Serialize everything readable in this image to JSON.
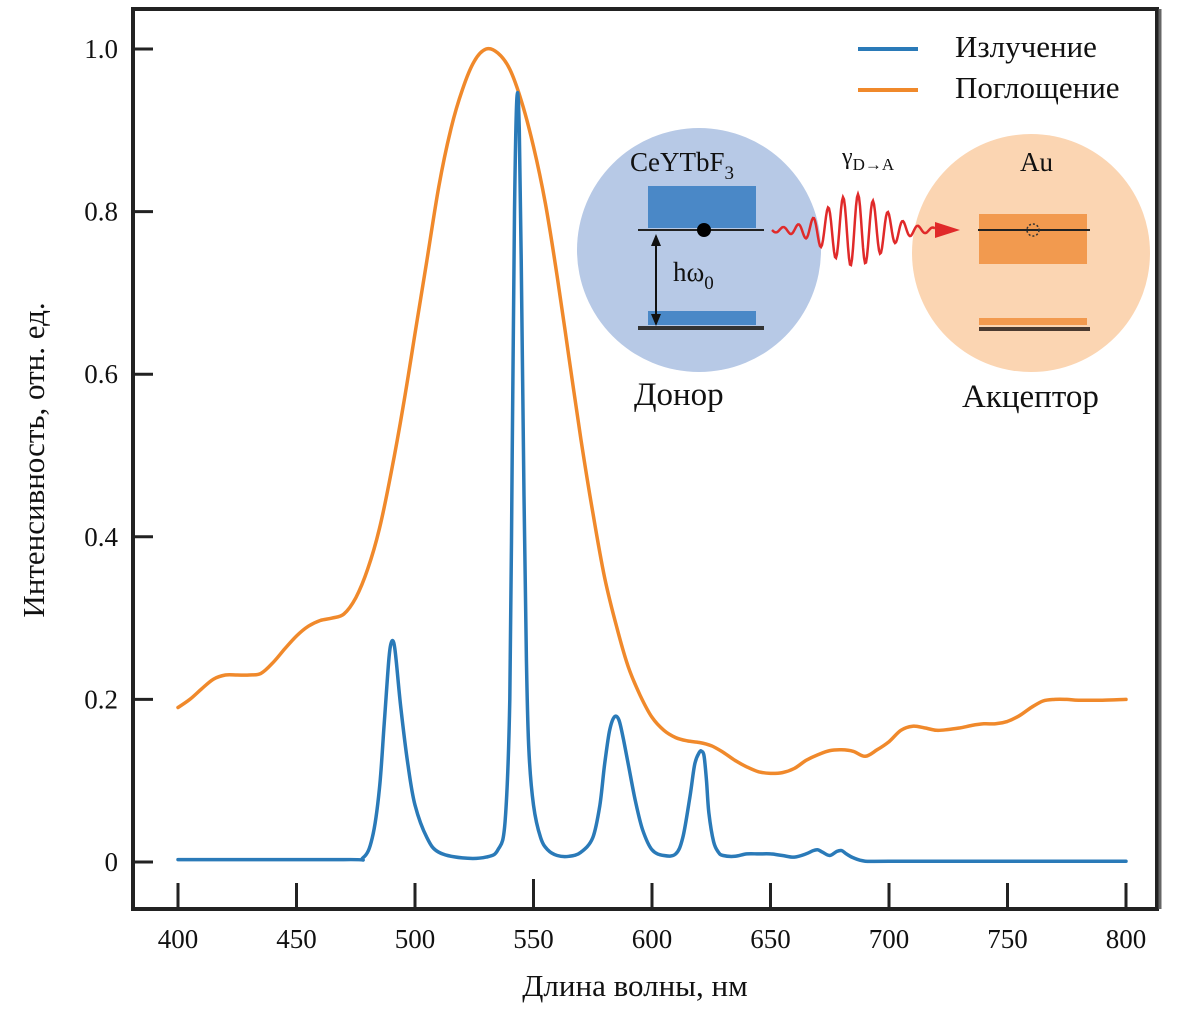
{
  "chart_data": {
    "type": "line",
    "title": "",
    "xlabel": "Длина волны, нм",
    "ylabel": "Интенсивность, отн. ед.",
    "xlim": [
      380,
      810
    ],
    "ylim": [
      -0.07,
      1.05
    ],
    "xticks": [
      400,
      450,
      500,
      550,
      600,
      650,
      700,
      750,
      800
    ],
    "xtick_labels": [
      "400",
      "450",
      "500",
      "550",
      "600",
      "650",
      "700",
      "750",
      "800"
    ],
    "yticks": [
      0,
      0.2,
      0.4,
      0.6,
      0.8,
      1.0
    ],
    "ytick_labels": [
      "0",
      "0.2",
      "0.4",
      "0.6",
      "0.8",
      "1.0"
    ],
    "grid": false,
    "legend_position": "top-right",
    "series": [
      {
        "name": "Излучение",
        "color": "#2a7ab8",
        "x": [
          400,
          470,
          478,
          482,
          485,
          487,
          489,
          490,
          491,
          492,
          494,
          497,
          500,
          505,
          510,
          520,
          530,
          535,
          538,
          540,
          541,
          542,
          543,
          544,
          545,
          546,
          547,
          548,
          550,
          553,
          556,
          560,
          565,
          570,
          575,
          578,
          580,
          582,
          584,
          586,
          588,
          590,
          593,
          596,
          600,
          605,
          610,
          613,
          616,
          618,
          620,
          621,
          622,
          623,
          624,
          626,
          628,
          630,
          635,
          640,
          645,
          650,
          655,
          660,
          665,
          668,
          670,
          672,
          675,
          678,
          680,
          682,
          685,
          690,
          700,
          750,
          800
        ],
        "y": [
          0.003,
          0.003,
          0.005,
          0.03,
          0.09,
          0.17,
          0.25,
          0.27,
          0.27,
          0.25,
          0.19,
          0.12,
          0.07,
          0.03,
          0.012,
          0.005,
          0.006,
          0.015,
          0.05,
          0.2,
          0.5,
          0.8,
          0.94,
          0.9,
          0.7,
          0.45,
          0.25,
          0.14,
          0.07,
          0.03,
          0.015,
          0.008,
          0.007,
          0.012,
          0.03,
          0.07,
          0.12,
          0.16,
          0.178,
          0.175,
          0.15,
          0.12,
          0.075,
          0.04,
          0.015,
          0.008,
          0.01,
          0.03,
          0.08,
          0.12,
          0.135,
          0.136,
          0.13,
          0.1,
          0.06,
          0.025,
          0.012,
          0.008,
          0.007,
          0.01,
          0.01,
          0.01,
          0.008,
          0.006,
          0.01,
          0.014,
          0.015,
          0.012,
          0.008,
          0.013,
          0.014,
          0.01,
          0.005,
          0.001,
          0.001,
          0.001,
          0.001
        ]
      },
      {
        "name": "Поглощение",
        "color": "#f0892b",
        "x": [
          400,
          405,
          410,
          415,
          420,
          425,
          430,
          435,
          440,
          445,
          450,
          455,
          460,
          465,
          470,
          475,
          480,
          485,
          490,
          495,
          500,
          505,
          510,
          515,
          520,
          525,
          530,
          535,
          540,
          545,
          550,
          555,
          560,
          565,
          570,
          575,
          580,
          585,
          590,
          595,
          600,
          605,
          610,
          615,
          620,
          625,
          630,
          635,
          640,
          645,
          650,
          655,
          660,
          665,
          670,
          675,
          680,
          685,
          690,
          695,
          700,
          705,
          710,
          715,
          720,
          725,
          730,
          735,
          740,
          745,
          750,
          755,
          760,
          765,
          770,
          775,
          780,
          790,
          800
        ],
        "y": [
          0.19,
          0.2,
          0.213,
          0.225,
          0.23,
          0.23,
          0.23,
          0.232,
          0.245,
          0.262,
          0.278,
          0.29,
          0.297,
          0.3,
          0.305,
          0.325,
          0.36,
          0.41,
          0.48,
          0.56,
          0.65,
          0.74,
          0.83,
          0.9,
          0.95,
          0.985,
          1.0,
          0.995,
          0.975,
          0.935,
          0.88,
          0.81,
          0.72,
          0.62,
          0.52,
          0.43,
          0.35,
          0.29,
          0.24,
          0.205,
          0.178,
          0.162,
          0.153,
          0.149,
          0.147,
          0.143,
          0.135,
          0.125,
          0.117,
          0.111,
          0.109,
          0.11,
          0.115,
          0.125,
          0.132,
          0.137,
          0.138,
          0.136,
          0.13,
          0.138,
          0.148,
          0.162,
          0.167,
          0.165,
          0.162,
          0.163,
          0.165,
          0.168,
          0.17,
          0.17,
          0.173,
          0.18,
          0.19,
          0.198,
          0.2,
          0.2,
          0.199,
          0.199,
          0.2
        ]
      }
    ]
  },
  "inset": {
    "donor_material": "CeYTbF",
    "donor_subscript": "3",
    "donor_label": "Донор",
    "energy_label": "hω",
    "energy_subscript": "0",
    "transfer_label": "γ",
    "transfer_subscript": "D→A",
    "acceptor_material": "Au",
    "acceptor_label": "Акцептор",
    "colors": {
      "donor_circle": "#b7c9e6",
      "donor_band": "#4a88c7",
      "acceptor_circle": "#fbd5b2",
      "acceptor_band": "#f29a4f",
      "wave": "#e02a2a"
    }
  }
}
